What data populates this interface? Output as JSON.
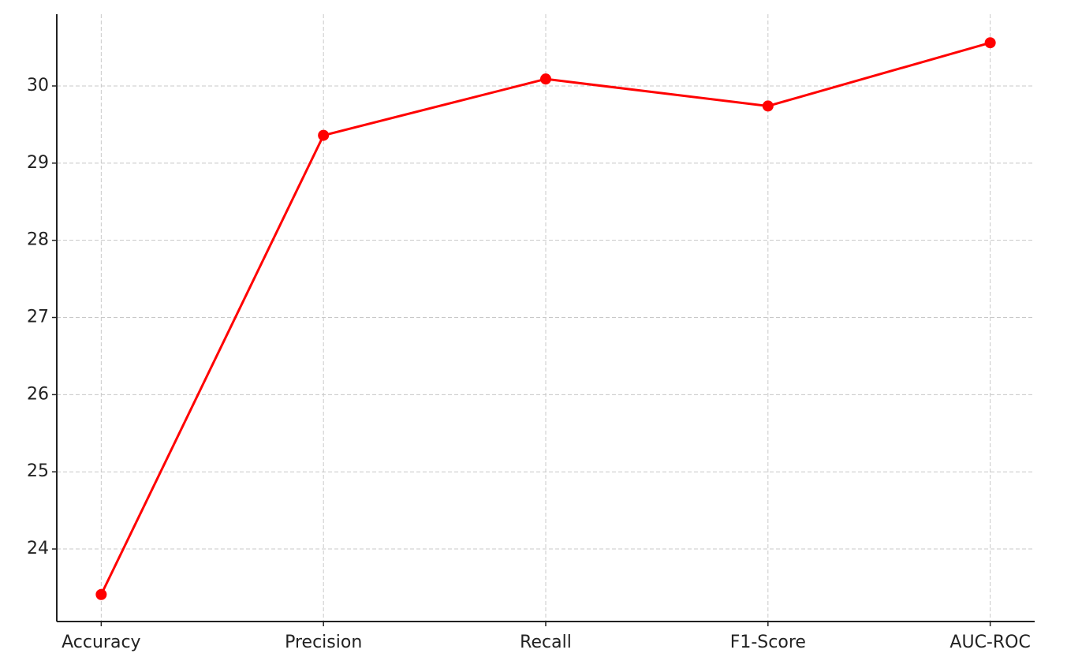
{
  "chart_data": {
    "type": "line",
    "categories": [
      "Accuracy",
      "Precision",
      "Recall",
      "F1-Score",
      "AUC-ROC"
    ],
    "series": [
      {
        "color": "#ff0000",
        "values": [
          23.41,
          29.36,
          30.09,
          29.74,
          30.56
        ]
      }
    ],
    "ylim": [
      23.06,
      30.93
    ],
    "yticks": [
      24,
      25,
      26,
      27,
      28,
      29,
      30
    ],
    "grid": true
  }
}
